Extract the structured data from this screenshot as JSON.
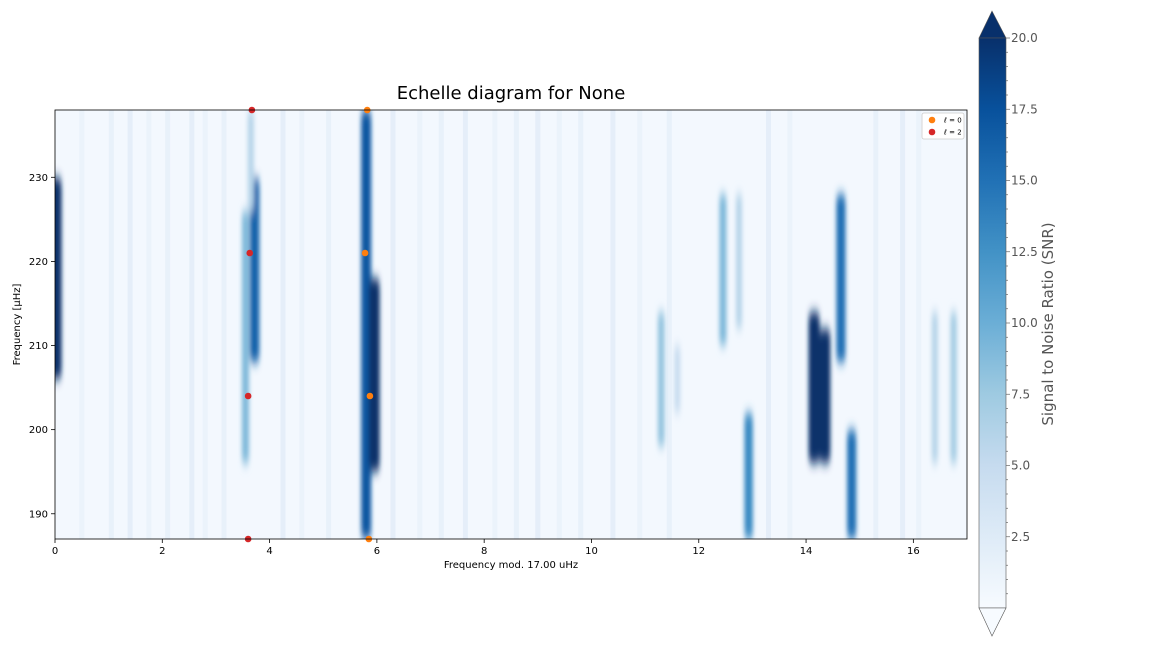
{
  "chart_data": {
    "type": "heatmap",
    "title": "Echelle diagram for None",
    "xlabel": "Frequency mod. 17.00 uHz",
    "ylabel": "Frequency [μHz]",
    "xlim": [
      0,
      17.0
    ],
    "ylim": [
      187,
      238
    ],
    "x_ticks": [
      0,
      2,
      4,
      6,
      8,
      10,
      12,
      14,
      16
    ],
    "y_ticks": [
      190,
      200,
      210,
      220,
      230
    ],
    "colorbar": {
      "label": "Signal to Noise Ratio (SNR)",
      "range": [
        0,
        20.0
      ],
      "ticks": [
        "2.5",
        "5.0",
        "7.5",
        "10.0",
        "12.5",
        "15.0",
        "17.5",
        "20.0"
      ],
      "extend": "both",
      "colormap": "Blues"
    },
    "legend": {
      "position": "top-right",
      "entries": [
        {
          "label": "ℓ = 0",
          "color": "#ff7f0e"
        },
        {
          "label": "ℓ = 2",
          "color": "#d62728"
        }
      ]
    },
    "series": [
      {
        "name": "ℓ = 0",
        "color": "#ff7f0e",
        "points": [
          [
            5.85,
            187.0
          ],
          [
            5.87,
            204.0
          ],
          [
            5.78,
            221.0
          ],
          [
            5.82,
            238.0
          ]
        ]
      },
      {
        "name": "ℓ = 2",
        "color": "#d62728",
        "points": [
          [
            3.6,
            187.0
          ],
          [
            3.6,
            204.0
          ],
          [
            3.63,
            221.0
          ],
          [
            3.67,
            238.0
          ]
        ]
      }
    ],
    "ridges": [
      {
        "x": 0.02,
        "y_from": 206,
        "y_to": 230,
        "snr": 20
      },
      {
        "x": 3.55,
        "y_from": 196,
        "y_to": 226,
        "snr": 9
      },
      {
        "x": 3.72,
        "y_from": 208,
        "y_to": 230,
        "snr": 16
      },
      {
        "x": 3.65,
        "y_from": 226,
        "y_to": 238,
        "snr": 6
      },
      {
        "x": 5.8,
        "y_from": 187,
        "y_to": 238,
        "snr": 17
      },
      {
        "x": 5.95,
        "y_from": 195,
        "y_to": 218,
        "snr": 20
      },
      {
        "x": 11.3,
        "y_from": 198,
        "y_to": 214,
        "snr": 8
      },
      {
        "x": 11.6,
        "y_from": 202,
        "y_to": 210,
        "snr": 5
      },
      {
        "x": 12.45,
        "y_from": 210,
        "y_to": 228,
        "snr": 9
      },
      {
        "x": 12.75,
        "y_from": 212,
        "y_to": 228,
        "snr": 6
      },
      {
        "x": 12.93,
        "y_from": 187,
        "y_to": 202,
        "snr": 13
      },
      {
        "x": 14.15,
        "y_from": 196,
        "y_to": 214,
        "snr": 20
      },
      {
        "x": 14.35,
        "y_from": 196,
        "y_to": 212,
        "snr": 20
      },
      {
        "x": 14.65,
        "y_from": 208,
        "y_to": 228,
        "snr": 15
      },
      {
        "x": 14.85,
        "y_from": 187,
        "y_to": 200,
        "snr": 15
      },
      {
        "x": 16.4,
        "y_from": 196,
        "y_to": 214,
        "snr": 6
      },
      {
        "x": 16.75,
        "y_from": 196,
        "y_to": 214,
        "snr": 7
      }
    ]
  }
}
